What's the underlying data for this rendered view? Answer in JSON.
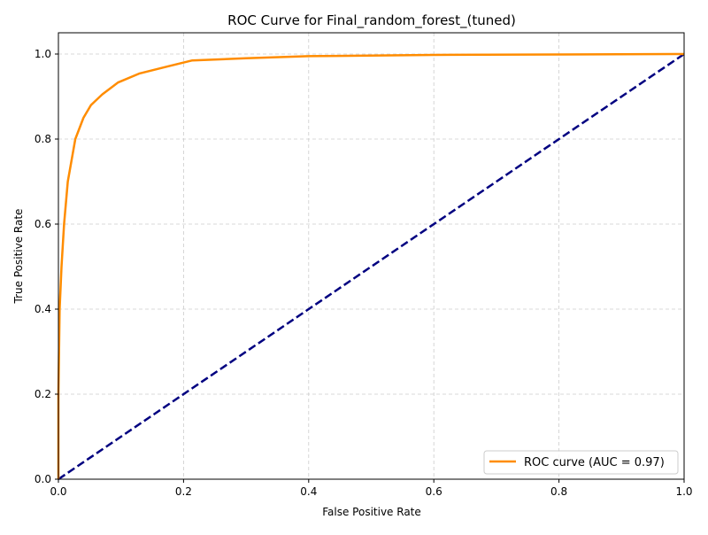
{
  "chart_data": {
    "type": "line",
    "title": "ROC Curve for Final_random_forest_(tuned)",
    "xlabel": "False Positive Rate",
    "ylabel": "True Positive Rate",
    "xlim": [
      0,
      1.0
    ],
    "ylim": [
      0,
      1.05
    ],
    "xticks": [
      0,
      0.2,
      0.4,
      0.6,
      0.8,
      1.0
    ],
    "xtick_labels": [
      "0.0",
      "0.2",
      "0.4",
      "0.6",
      "0.8",
      "1.0"
    ],
    "yticks": [
      0,
      0.2,
      0.4,
      0.6,
      0.8,
      1.0
    ],
    "ytick_labels": [
      "0.0",
      "0.2",
      "0.4",
      "0.6",
      "0.8",
      "1.0"
    ],
    "grid": true,
    "legend_position": "bottom-right",
    "series": [
      {
        "name": "ROC curve (AUC = 0.97)",
        "color": "#ff8c00",
        "style": "solid",
        "x": [
          0,
          0,
          0.002,
          0.005,
          0.009,
          0.015,
          0.027,
          0.04,
          0.052,
          0.07,
          0.095,
          0.129,
          0.175,
          0.214,
          0.3,
          0.4,
          0.6,
          0.8,
          1.0
        ],
        "y": [
          0,
          0.2,
          0.4,
          0.5,
          0.6,
          0.7,
          0.8,
          0.85,
          0.88,
          0.905,
          0.933,
          0.954,
          0.971,
          0.985,
          0.99,
          0.995,
          0.998,
          0.999,
          1.0
        ]
      },
      {
        "color": "#000080",
        "style": "dashed",
        "x": [
          0,
          1
        ],
        "y": [
          0,
          1
        ]
      }
    ]
  }
}
